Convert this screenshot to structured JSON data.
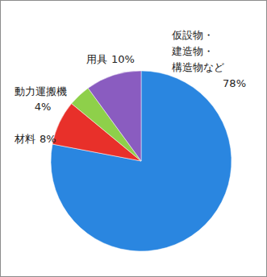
{
  "chart_data": {
    "type": "pie",
    "categories": [
      "仮設物・建造物・構造物など",
      "材料",
      "動力運搬機",
      "用具"
    ],
    "values": [
      78,
      8,
      4,
      10
    ],
    "value_labels": [
      "78%",
      "8%",
      "4%",
      "10%"
    ],
    "colors": [
      "#2a86e0",
      "#e8302a",
      "#8ed04a",
      "#8a5cc0"
    ],
    "data_labels": true
  }
}
